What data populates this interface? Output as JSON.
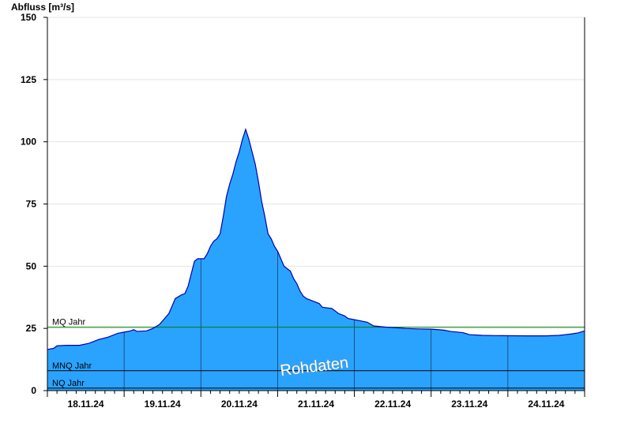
{
  "chart_data": {
    "type": "area",
    "ylabel": "Abfluss [m³/s]",
    "ylim": [
      0,
      150
    ],
    "yticks": [
      0,
      25,
      50,
      75,
      100,
      125,
      150
    ],
    "xlim": [
      "18.11.24 00:00",
      "25.11.24 00:00"
    ],
    "xticks": [
      "18.11.24",
      "19.11.24",
      "20.11.24",
      "21.11.24",
      "22.11.24",
      "23.11.24",
      "24.11.24"
    ],
    "grid": true,
    "fill_color": "#2aa3ff",
    "line_color": "#0000b0",
    "reference_lines": [
      {
        "name": "MQ Jahr",
        "value": 25.5,
        "color": "#008000"
      },
      {
        "name": "MNQ Jahr",
        "value": 8,
        "color": "#000000"
      },
      {
        "name": "NQ Jahr",
        "value": 1,
        "color": "#000000"
      }
    ],
    "watermark": "Rohdaten",
    "x_unit": "hours since 18.11.24 00:00",
    "points": [
      [
        0,
        16.5
      ],
      [
        2,
        17
      ],
      [
        3,
        18
      ],
      [
        6,
        18.2
      ],
      [
        10,
        18.2
      ],
      [
        13,
        19
      ],
      [
        16,
        20.5
      ],
      [
        19,
        21.5
      ],
      [
        22,
        23
      ],
      [
        24,
        23.5
      ],
      [
        26,
        24
      ],
      [
        27,
        24.5
      ],
      [
        28,
        23.8
      ],
      [
        31,
        24
      ],
      [
        33,
        25
      ],
      [
        35,
        26.5
      ],
      [
        36,
        28
      ],
      [
        38,
        31
      ],
      [
        39,
        34
      ],
      [
        40,
        37
      ],
      [
        42,
        38.5
      ],
      [
        43,
        39
      ],
      [
        44,
        42
      ],
      [
        45,
        47
      ],
      [
        46,
        52
      ],
      [
        47,
        53
      ],
      [
        48,
        53
      ],
      [
        49,
        53
      ],
      [
        50,
        55
      ],
      [
        51,
        58
      ],
      [
        52,
        60
      ],
      [
        53,
        61
      ],
      [
        54,
        63
      ],
      [
        55,
        70
      ],
      [
        56,
        78
      ],
      [
        57,
        83
      ],
      [
        58,
        87
      ],
      [
        59,
        92
      ],
      [
        60,
        96
      ],
      [
        61,
        101
      ],
      [
        62,
        105
      ],
      [
        63,
        101
      ],
      [
        64,
        96
      ],
      [
        65,
        91
      ],
      [
        66,
        84
      ],
      [
        67,
        76
      ],
      [
        68,
        70
      ],
      [
        69,
        63
      ],
      [
        70,
        61
      ],
      [
        71,
        58
      ],
      [
        72,
        56
      ],
      [
        73,
        53
      ],
      [
        74,
        50
      ],
      [
        75,
        49
      ],
      [
        76,
        48
      ],
      [
        77,
        45
      ],
      [
        78,
        43
      ],
      [
        79,
        40
      ],
      [
        80,
        38
      ],
      [
        81,
        37
      ],
      [
        83,
        36
      ],
      [
        85,
        35
      ],
      [
        86,
        33.5
      ],
      [
        89,
        33
      ],
      [
        91,
        31
      ],
      [
        93,
        30
      ],
      [
        94,
        29
      ],
      [
        96,
        28.5
      ],
      [
        98,
        28
      ],
      [
        100,
        27.5
      ],
      [
        102,
        26
      ],
      [
        106,
        25.5
      ],
      [
        110,
        25.2
      ],
      [
        112,
        25
      ],
      [
        116,
        24.8
      ],
      [
        120,
        24.7
      ],
      [
        124,
        24.3
      ],
      [
        126,
        23.8
      ],
      [
        130,
        23.3
      ],
      [
        132,
        22.5
      ],
      [
        136,
        22.2
      ],
      [
        140,
        22.1
      ],
      [
        150,
        22
      ],
      [
        156,
        22
      ],
      [
        160,
        22.2
      ],
      [
        162,
        22.5
      ],
      [
        164,
        22.8
      ],
      [
        166,
        23.2
      ],
      [
        168,
        24
      ]
    ]
  }
}
